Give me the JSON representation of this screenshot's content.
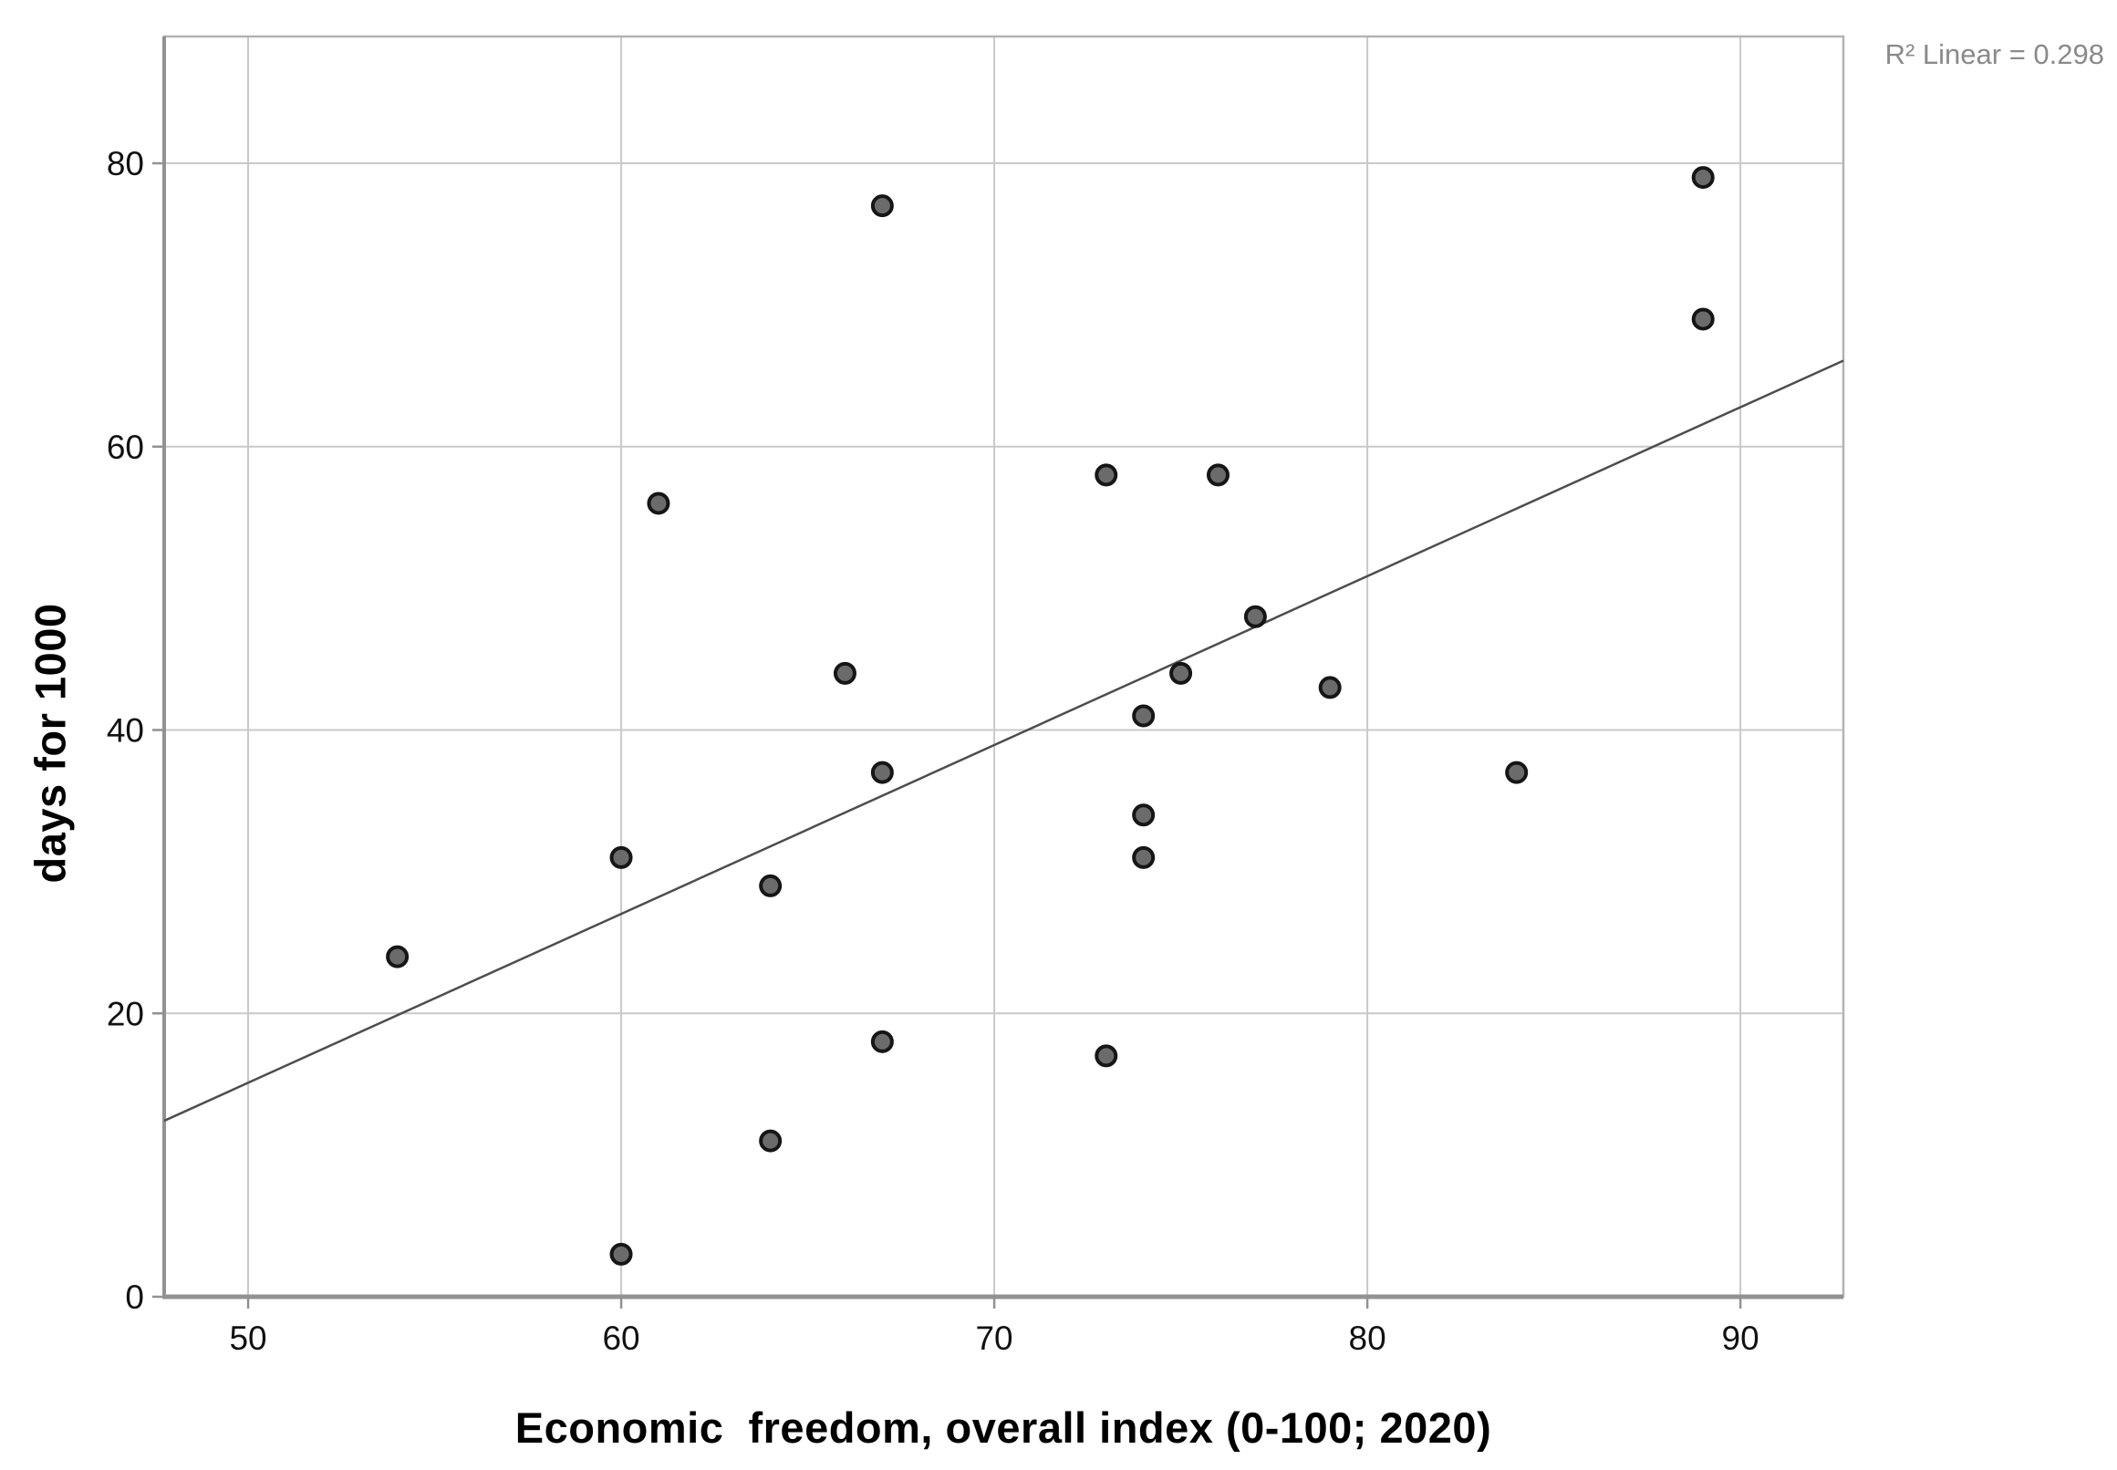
{
  "chart_data": {
    "type": "scatter",
    "title": "",
    "xlabel": "Economic  freedom, overall index (0-100; 2020)",
    "ylabel": "days for 1000",
    "annotation": "R² Linear = 0.298",
    "x_ticks": [
      50,
      60,
      70,
      80,
      90
    ],
    "y_ticks": [
      0,
      20,
      40,
      60,
      80
    ],
    "xlim": [
      47.75,
      92.76
    ],
    "ylim": [
      0,
      88.95
    ],
    "grid": true,
    "legend": "none",
    "points": [
      [
        67,
        77
      ],
      [
        89,
        79
      ],
      [
        89,
        69
      ],
      [
        73,
        58
      ],
      [
        76,
        58
      ],
      [
        61,
        56
      ],
      [
        77,
        48
      ],
      [
        66,
        44
      ],
      [
        75,
        44
      ],
      [
        79,
        43
      ],
      [
        74,
        41
      ],
      [
        84,
        37
      ],
      [
        67,
        37
      ],
      [
        74,
        34
      ],
      [
        74,
        31
      ],
      [
        60,
        31
      ],
      [
        64,
        29
      ],
      [
        54,
        24
      ],
      [
        67,
        18
      ],
      [
        73,
        17
      ],
      [
        64,
        11
      ],
      [
        60,
        3
      ]
    ],
    "fit_line": {
      "slope": 1.192,
      "intercept": -44.5,
      "r_squared": 0.298
    },
    "colors": {
      "point_fill": "#6b6b6b",
      "point_stroke": "#161616",
      "line": "#4d4d4d",
      "grid": "#c9c9c9",
      "frame": "#b3b3b3",
      "axis": "#929292",
      "annotation_text": "#8a8a8a",
      "background": "#ffffff"
    }
  }
}
